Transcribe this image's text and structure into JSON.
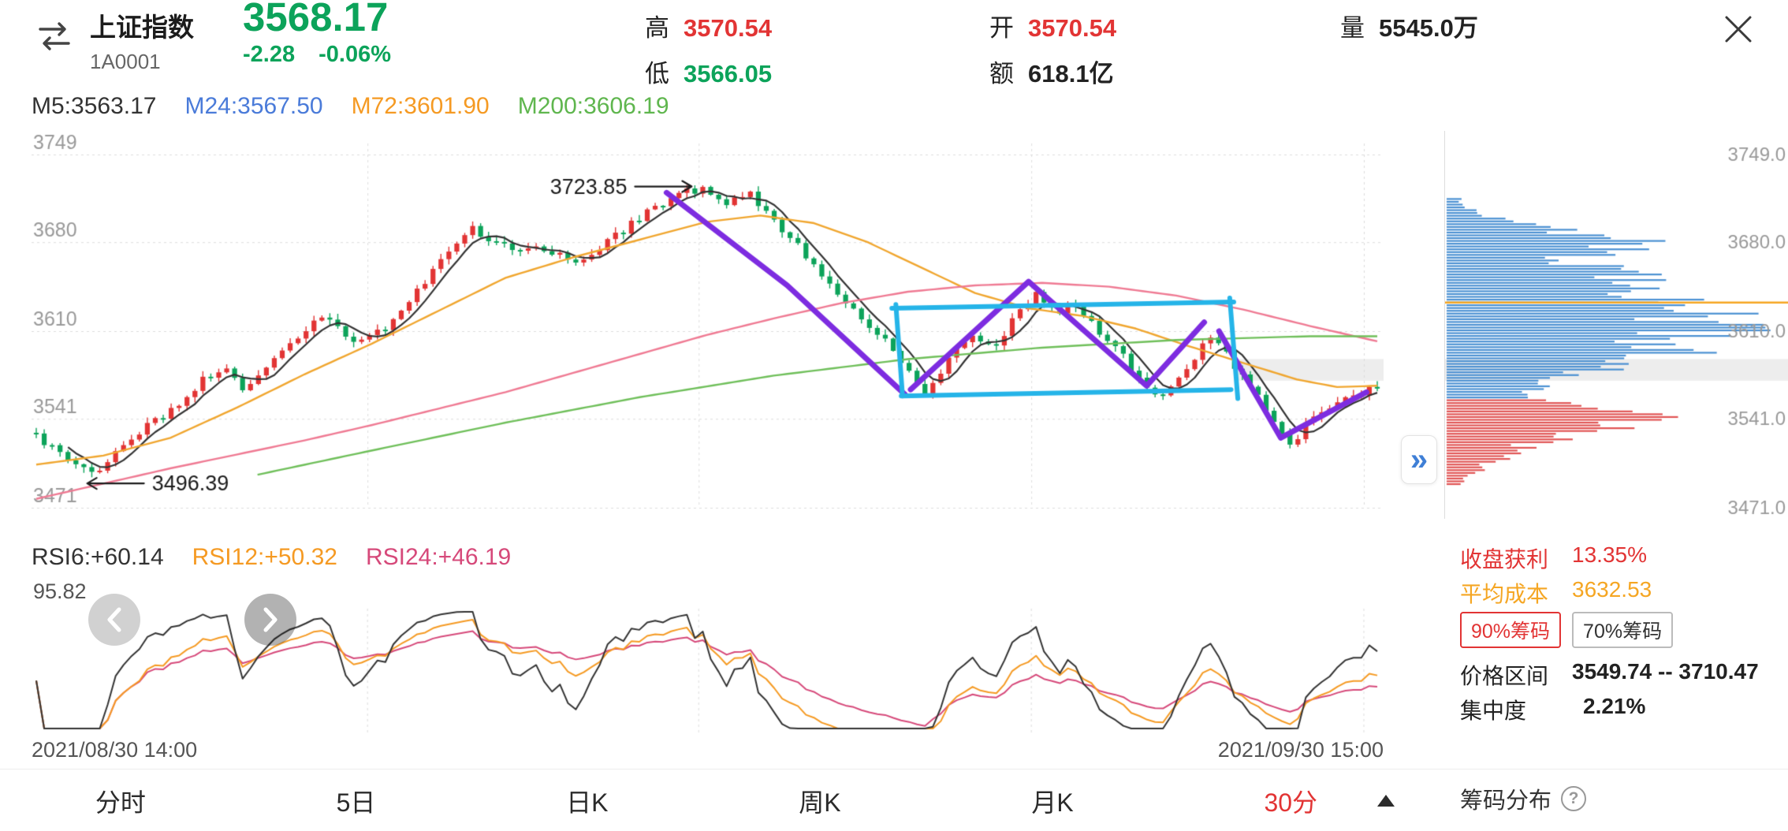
{
  "header": {
    "stock_name": "上证指数",
    "stock_code": "1A0001",
    "price": "3568.17",
    "change": "-2.28",
    "change_pct": "-0.06%",
    "high_label": "高",
    "high_value": "3570.54",
    "low_label": "低",
    "low_value": "3566.05",
    "open_label": "开",
    "open_value": "3570.54",
    "amount_label": "额",
    "amount_value": "618.1亿",
    "volume_label": "量",
    "volume_value": "5545.0万"
  },
  "ma_labels": [
    {
      "label": "M5:3563.17"
    },
    {
      "label": "M24:3567.50"
    },
    {
      "label": "M72:3601.90"
    },
    {
      "label": "M200:3606.19"
    }
  ],
  "rsi_labels": [
    {
      "label": "RSI6:+60.14"
    },
    {
      "label": "RSI12:+50.32"
    },
    {
      "label": "RSI24:+46.19"
    }
  ],
  "rsi_pane": {
    "max_label": "95.82"
  },
  "time_axis": {
    "start": "2021/08/30 14:00",
    "end": "2021/09/30 15:00"
  },
  "tabs": [
    {
      "label": "分时"
    },
    {
      "label": "5日"
    },
    {
      "label": "日K"
    },
    {
      "label": "周K"
    },
    {
      "label": "月K"
    },
    {
      "label": "30分"
    }
  ],
  "sidebar": {
    "price_labels": [
      "3749.0",
      "3680.0",
      "3610.0",
      "3541.0",
      "3471.0"
    ],
    "stats": {
      "profit_label": "收盘获利",
      "profit_value": "13.35%",
      "avg_cost_label": "平均成本",
      "avg_cost_value": "3632.53",
      "btn_90": "90%筹码",
      "btn_70": "70%筹码",
      "range_label": "价格区间",
      "range_value": "3549.74 -- 3710.47",
      "concentration_label": "集中度",
      "concentration_value": "2.21%"
    },
    "footer_label": "筹码分布"
  },
  "colors": {
    "up": "#e23434",
    "down": "#0ca35a",
    "m5_line": "#333333",
    "m24_line": "#f0a62f",
    "m72_line": "#ef7a93",
    "m200_line": "#6fbf5a",
    "chip_blue": "#4a90d2",
    "chip_red": "#e05454",
    "avg_cost_line": "#f5a623",
    "drawing_purple": "#7d2ce0",
    "drawing_cyan": "#25b4e8",
    "active_tab": "#e23434"
  },
  "chart_data": {
    "type": "candlestick",
    "title": "上证指数 30分K线 2021/08/30 14:00 - 2021/09/30 15:00",
    "x_range": [
      "2021/08/30 14:00",
      "2021/09/30 15:00"
    ],
    "bars": 170,
    "y_axis": {
      "top": 3749,
      "bottom": 3471,
      "tick_labels": [
        "3749",
        "3680",
        "3610",
        "3541",
        "3471"
      ],
      "tick_values": [
        3749,
        3680,
        3610,
        3541,
        3471
      ]
    },
    "grid_xfracs": [
      0.247,
      0.494,
      0.742,
      0.99
    ],
    "close_waypoints": [
      [
        0,
        3528
      ],
      [
        0.02,
        3512
      ],
      [
        0.04,
        3497
      ],
      [
        0.055,
        3510
      ],
      [
        0.07,
        3526
      ],
      [
        0.1,
        3548
      ],
      [
        0.125,
        3572
      ],
      [
        0.14,
        3580
      ],
      [
        0.155,
        3562
      ],
      [
        0.17,
        3578
      ],
      [
        0.19,
        3600
      ],
      [
        0.21,
        3622
      ],
      [
        0.225,
        3612
      ],
      [
        0.24,
        3601
      ],
      [
        0.26,
        3612
      ],
      [
        0.285,
        3642
      ],
      [
        0.305,
        3668
      ],
      [
        0.325,
        3690
      ],
      [
        0.345,
        3678
      ],
      [
        0.36,
        3670
      ],
      [
        0.375,
        3678
      ],
      [
        0.39,
        3670
      ],
      [
        0.405,
        3664
      ],
      [
        0.425,
        3680
      ],
      [
        0.445,
        3695
      ],
      [
        0.465,
        3710
      ],
      [
        0.48,
        3718
      ],
      [
        0.5,
        3723
      ],
      [
        0.515,
        3710
      ],
      [
        0.53,
        3720
      ],
      [
        0.545,
        3702
      ],
      [
        0.565,
        3682
      ],
      [
        0.585,
        3655
      ],
      [
        0.605,
        3630
      ],
      [
        0.625,
        3612
      ],
      [
        0.645,
        3585
      ],
      [
        0.663,
        3562
      ],
      [
        0.68,
        3588
      ],
      [
        0.7,
        3607
      ],
      [
        0.715,
        3597
      ],
      [
        0.73,
        3622
      ],
      [
        0.745,
        3640
      ],
      [
        0.76,
        3625
      ],
      [
        0.775,
        3632
      ],
      [
        0.79,
        3612
      ],
      [
        0.81,
        3590
      ],
      [
        0.825,
        3572
      ],
      [
        0.84,
        3556
      ],
      [
        0.855,
        3578
      ],
      [
        0.875,
        3605
      ],
      [
        0.89,
        3588
      ],
      [
        0.905,
        3565
      ],
      [
        0.92,
        3545
      ],
      [
        0.935,
        3518
      ],
      [
        0.95,
        3540
      ],
      [
        0.965,
        3552
      ],
      [
        0.98,
        3556
      ],
      [
        1,
        3568
      ]
    ],
    "ma_lines": [
      {
        "name": "M5",
        "period": 5,
        "source": "computed",
        "color": "#333333"
      },
      {
        "name": "M24",
        "color": "#f0a62f",
        "points": [
          [
            0,
            3505
          ],
          [
            0.05,
            3512
          ],
          [
            0.1,
            3526
          ],
          [
            0.15,
            3550
          ],
          [
            0.2,
            3576
          ],
          [
            0.25,
            3600
          ],
          [
            0.3,
            3626
          ],
          [
            0.35,
            3652
          ],
          [
            0.4,
            3668
          ],
          [
            0.45,
            3682
          ],
          [
            0.5,
            3696
          ],
          [
            0.54,
            3701
          ],
          [
            0.58,
            3695
          ],
          [
            0.62,
            3680
          ],
          [
            0.66,
            3660
          ],
          [
            0.7,
            3640
          ],
          [
            0.74,
            3628
          ],
          [
            0.78,
            3622
          ],
          [
            0.82,
            3612
          ],
          [
            0.86,
            3598
          ],
          [
            0.9,
            3585
          ],
          [
            0.94,
            3572
          ],
          [
            0.97,
            3566
          ],
          [
            1,
            3567
          ]
        ]
      },
      {
        "name": "M72",
        "color": "#ef7a93",
        "points": [
          [
            0,
            3478
          ],
          [
            0.05,
            3490
          ],
          [
            0.1,
            3502
          ],
          [
            0.15,
            3513
          ],
          [
            0.2,
            3524
          ],
          [
            0.25,
            3536
          ],
          [
            0.3,
            3549
          ],
          [
            0.35,
            3562
          ],
          [
            0.4,
            3577
          ],
          [
            0.45,
            3592
          ],
          [
            0.5,
            3607
          ],
          [
            0.55,
            3620
          ],
          [
            0.6,
            3632
          ],
          [
            0.65,
            3641
          ],
          [
            0.7,
            3646
          ],
          [
            0.75,
            3648
          ],
          [
            0.8,
            3645
          ],
          [
            0.85,
            3638
          ],
          [
            0.9,
            3627
          ],
          [
            0.95,
            3614
          ],
          [
            1,
            3602
          ]
        ]
      },
      {
        "name": "M200",
        "color": "#6fbf5a",
        "points": [
          [
            0.165,
            3497
          ],
          [
            0.25,
            3516
          ],
          [
            0.35,
            3538
          ],
          [
            0.45,
            3558
          ],
          [
            0.55,
            3575
          ],
          [
            0.65,
            3588
          ],
          [
            0.75,
            3597
          ],
          [
            0.85,
            3603
          ],
          [
            0.95,
            3606
          ],
          [
            1,
            3606
          ]
        ]
      }
    ],
    "highlight_band": {
      "x_from": 0.895,
      "price_top": 3588,
      "price_bottom": 3571,
      "color": "#ededed"
    },
    "callouts": [
      {
        "text": "3723.85",
        "price": 3723.85,
        "xfrac": 0.497,
        "dir": "right"
      },
      {
        "text": "3496.39",
        "price": 3496.39,
        "xfrac": 0.038,
        "dir": "left"
      }
    ],
    "drawings": [
      {
        "color": "#7d2ce0",
        "width": 7,
        "points": [
          [
            0.47,
            3719
          ],
          [
            0.56,
            3646
          ],
          [
            0.648,
            3560
          ]
        ]
      },
      {
        "color": "#7d2ce0",
        "width": 7,
        "points": [
          [
            0.652,
            3564
          ],
          [
            0.74,
            3649
          ],
          [
            0.828,
            3567
          ],
          [
            0.871,
            3617
          ]
        ]
      },
      {
        "color": "#7d2ce0",
        "width": 7,
        "points": [
          [
            0.882,
            3610
          ],
          [
            0.928,
            3526
          ],
          [
            0.992,
            3562
          ]
        ]
      },
      {
        "color": "#25b4e8",
        "width": 6,
        "points": [
          [
            0.638,
            3628
          ],
          [
            0.893,
            3633
          ]
        ]
      },
      {
        "color": "#25b4e8",
        "width": 6,
        "points": [
          [
            0.641,
            3631
          ],
          [
            0.646,
            3559
          ]
        ]
      },
      {
        "color": "#25b4e8",
        "width": 6,
        "points": [
          [
            0.645,
            3559
          ],
          [
            0.891,
            3564
          ]
        ]
      },
      {
        "color": "#25b4e8",
        "width": 6,
        "points": [
          [
            0.89,
            3636
          ],
          [
            0.896,
            3557
          ]
        ]
      }
    ],
    "rsi": {
      "periods": [
        6,
        12,
        24
      ],
      "colors": [
        "#333333",
        "#f59a23",
        "#d6497a"
      ],
      "values_latest": [
        60.14,
        50.32,
        46.19
      ],
      "scale_max": 96,
      "scale_min": 18
    },
    "chip_distribution": {
      "boundary_price": 3556,
      "avg_cost": 3632.53,
      "profit_ratio": "13.35%",
      "range": [
        3549.74,
        3710.47
      ],
      "concentration": "2.21%",
      "profile": [
        [
          3486,
          0.02
        ],
        [
          3492,
          0.06
        ],
        [
          3498,
          0.1
        ],
        [
          3504,
          0.15
        ],
        [
          3510,
          0.2
        ],
        [
          3516,
          0.27
        ],
        [
          3522,
          0.34
        ],
        [
          3528,
          0.47
        ],
        [
          3534,
          0.62
        ],
        [
          3540,
          0.78
        ],
        [
          3546,
          0.66
        ],
        [
          3552,
          0.4
        ],
        [
          3558,
          0.26
        ],
        [
          3564,
          0.32
        ],
        [
          3570,
          0.42
        ],
        [
          3576,
          0.5
        ],
        [
          3582,
          0.57
        ],
        [
          3588,
          0.74
        ],
        [
          3594,
          0.86
        ],
        [
          3600,
          0.7
        ],
        [
          3606,
          0.82
        ],
        [
          3612,
          1.0
        ],
        [
          3618,
          0.86
        ],
        [
          3624,
          0.93
        ],
        [
          3630,
          0.8
        ],
        [
          3636,
          0.9
        ],
        [
          3642,
          0.68
        ],
        [
          3648,
          0.84
        ],
        [
          3654,
          0.72
        ],
        [
          3660,
          0.6
        ],
        [
          3666,
          0.44
        ],
        [
          3672,
          0.52
        ],
        [
          3678,
          0.74
        ],
        [
          3684,
          0.57
        ],
        [
          3690,
          0.4
        ],
        [
          3696,
          0.24
        ],
        [
          3702,
          0.13
        ],
        [
          3708,
          0.08
        ],
        [
          3714,
          0.05
        ]
      ]
    }
  }
}
